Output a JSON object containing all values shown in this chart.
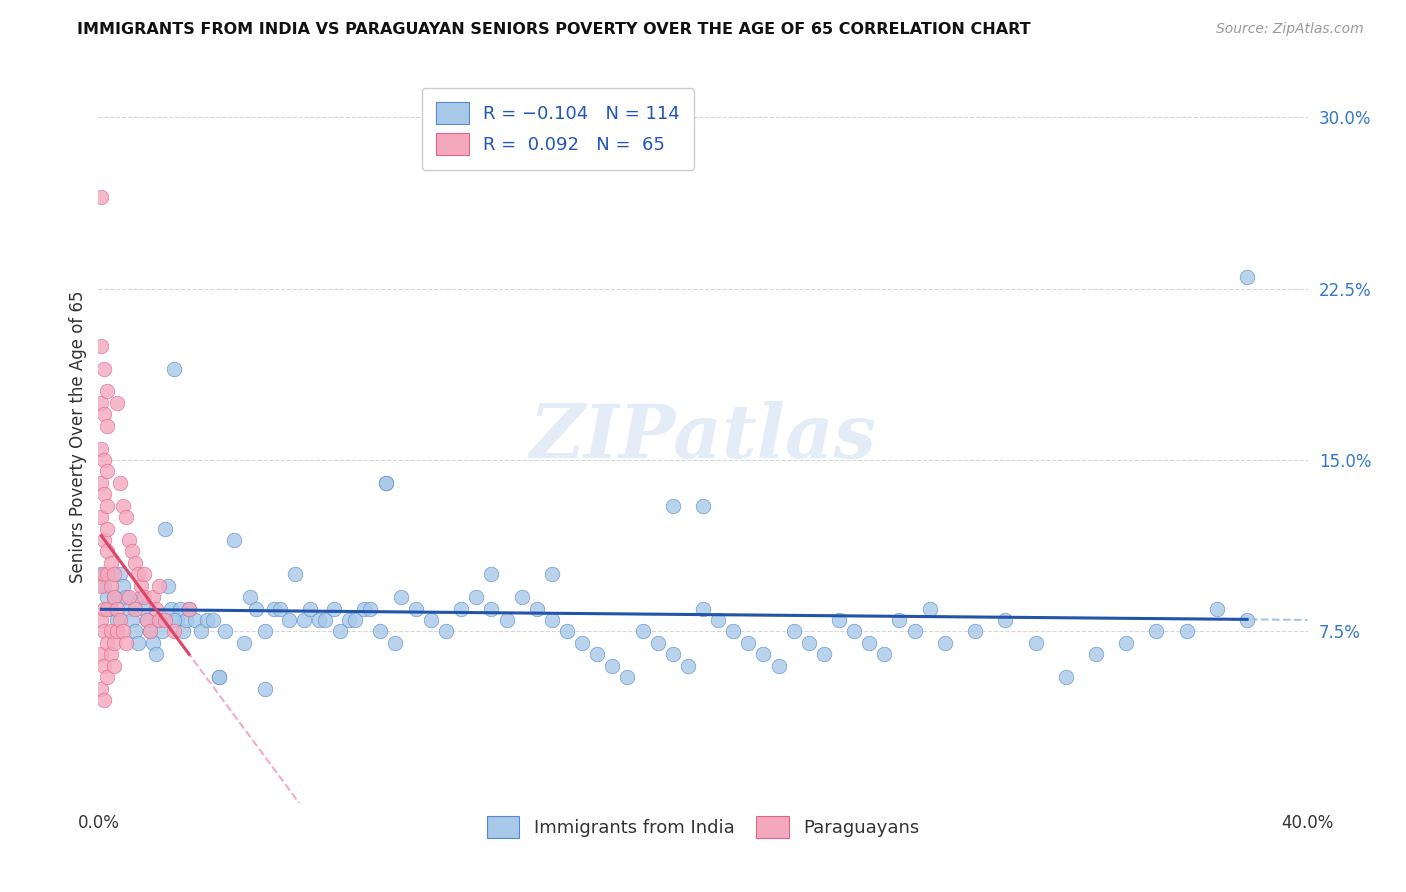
{
  "title": "IMMIGRANTS FROM INDIA VS PARAGUAYAN SENIORS POVERTY OVER THE AGE OF 65 CORRELATION CHART",
  "source": "Source: ZipAtlas.com",
  "ylabel": "Seniors Poverty Over the Age of 65",
  "xmin": 0.0,
  "xmax": 0.4,
  "ymin": 0.0,
  "ymax": 0.32,
  "yticks": [
    0.075,
    0.15,
    0.225,
    0.3
  ],
  "ytick_labels": [
    "7.5%",
    "15.0%",
    "22.5%",
    "30.0%"
  ],
  "legend_R1": "-0.104",
  "legend_N1": "114",
  "legend_R2": "0.092",
  "legend_N2": "65",
  "legend_label1": "Immigrants from India",
  "legend_label2": "Paraguayans",
  "color_india": "#a8c8e8",
  "color_paraguay": "#f4a8be",
  "color_india_edge": "#5588cc",
  "color_paraguay_edge": "#dd6688",
  "color_india_line": "#2255aa",
  "color_paraguay_line": "#dd4466",
  "color_india_dashed": "#88aadd",
  "color_paraguay_dashed": "#ee88aa",
  "watermark": "ZIPatlas",
  "india_x": [
    0.001,
    0.002,
    0.003,
    0.004,
    0.005,
    0.006,
    0.007,
    0.008,
    0.009,
    0.01,
    0.011,
    0.012,
    0.013,
    0.014,
    0.015,
    0.016,
    0.017,
    0.018,
    0.019,
    0.02,
    0.021,
    0.022,
    0.023,
    0.024,
    0.025,
    0.026,
    0.027,
    0.028,
    0.029,
    0.03,
    0.032,
    0.034,
    0.036,
    0.038,
    0.04,
    0.042,
    0.045,
    0.048,
    0.05,
    0.052,
    0.055,
    0.058,
    0.06,
    0.063,
    0.065,
    0.068,
    0.07,
    0.073,
    0.075,
    0.078,
    0.08,
    0.083,
    0.085,
    0.088,
    0.09,
    0.093,
    0.095,
    0.098,
    0.1,
    0.105,
    0.11,
    0.115,
    0.12,
    0.125,
    0.13,
    0.135,
    0.14,
    0.145,
    0.15,
    0.155,
    0.16,
    0.165,
    0.17,
    0.175,
    0.18,
    0.185,
    0.19,
    0.195,
    0.2,
    0.205,
    0.21,
    0.215,
    0.22,
    0.225,
    0.23,
    0.235,
    0.24,
    0.245,
    0.25,
    0.255,
    0.26,
    0.265,
    0.27,
    0.275,
    0.28,
    0.29,
    0.3,
    0.31,
    0.32,
    0.33,
    0.34,
    0.35,
    0.36,
    0.37,
    0.38,
    0.095,
    0.13,
    0.15,
    0.19,
    0.2,
    0.38,
    0.04,
    0.055,
    0.025
  ],
  "india_y": [
    0.1,
    0.095,
    0.09,
    0.085,
    0.09,
    0.08,
    0.1,
    0.095,
    0.09,
    0.085,
    0.08,
    0.075,
    0.07,
    0.09,
    0.085,
    0.08,
    0.075,
    0.07,
    0.065,
    0.08,
    0.075,
    0.12,
    0.095,
    0.085,
    0.19,
    0.08,
    0.085,
    0.075,
    0.08,
    0.085,
    0.08,
    0.075,
    0.08,
    0.08,
    0.055,
    0.075,
    0.115,
    0.07,
    0.09,
    0.085,
    0.075,
    0.085,
    0.085,
    0.08,
    0.1,
    0.08,
    0.085,
    0.08,
    0.08,
    0.085,
    0.075,
    0.08,
    0.08,
    0.085,
    0.085,
    0.075,
    0.14,
    0.07,
    0.09,
    0.085,
    0.08,
    0.075,
    0.085,
    0.09,
    0.085,
    0.08,
    0.09,
    0.085,
    0.08,
    0.075,
    0.07,
    0.065,
    0.06,
    0.055,
    0.075,
    0.07,
    0.065,
    0.06,
    0.085,
    0.08,
    0.075,
    0.07,
    0.065,
    0.06,
    0.075,
    0.07,
    0.065,
    0.08,
    0.075,
    0.07,
    0.065,
    0.08,
    0.075,
    0.085,
    0.07,
    0.075,
    0.08,
    0.07,
    0.055,
    0.065,
    0.07,
    0.075,
    0.075,
    0.085,
    0.08,
    0.14,
    0.1,
    0.1,
    0.13,
    0.13,
    0.23,
    0.055,
    0.05,
    0.08
  ],
  "paraguay_x": [
    0.001,
    0.001,
    0.001,
    0.001,
    0.001,
    0.001,
    0.001,
    0.001,
    0.001,
    0.001,
    0.002,
    0.002,
    0.002,
    0.002,
    0.002,
    0.002,
    0.002,
    0.002,
    0.002,
    0.002,
    0.003,
    0.003,
    0.003,
    0.003,
    0.003,
    0.003,
    0.003,
    0.003,
    0.003,
    0.003,
    0.004,
    0.004,
    0.004,
    0.004,
    0.005,
    0.005,
    0.005,
    0.005,
    0.006,
    0.006,
    0.006,
    0.007,
    0.007,
    0.008,
    0.008,
    0.009,
    0.009,
    0.01,
    0.01,
    0.011,
    0.012,
    0.012,
    0.013,
    0.014,
    0.015,
    0.015,
    0.016,
    0.017,
    0.018,
    0.019,
    0.02,
    0.02,
    0.022,
    0.025,
    0.03
  ],
  "paraguay_y": [
    0.265,
    0.2,
    0.175,
    0.155,
    0.14,
    0.125,
    0.095,
    0.08,
    0.065,
    0.05,
    0.19,
    0.17,
    0.15,
    0.135,
    0.115,
    0.1,
    0.085,
    0.075,
    0.06,
    0.045,
    0.18,
    0.165,
    0.145,
    0.13,
    0.12,
    0.11,
    0.1,
    0.085,
    0.07,
    0.055,
    0.105,
    0.095,
    0.075,
    0.065,
    0.1,
    0.09,
    0.07,
    0.06,
    0.175,
    0.085,
    0.075,
    0.14,
    0.08,
    0.13,
    0.075,
    0.125,
    0.07,
    0.115,
    0.09,
    0.11,
    0.105,
    0.085,
    0.1,
    0.095,
    0.1,
    0.09,
    0.08,
    0.075,
    0.09,
    0.085,
    0.095,
    0.08,
    0.08,
    0.075,
    0.085
  ]
}
